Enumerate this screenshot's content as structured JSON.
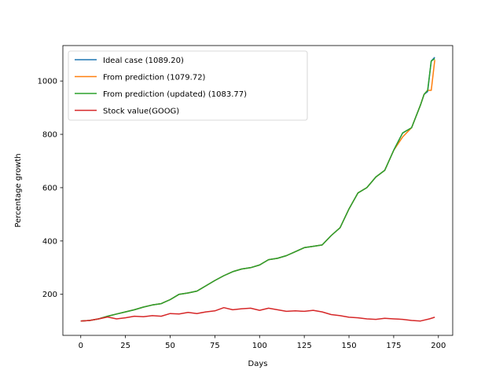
{
  "chart_data": {
    "type": "line",
    "xlabel": "Days",
    "ylabel": "Percentage growth",
    "xlim": [
      -10,
      208
    ],
    "ylim": [
      46,
      1133
    ],
    "xticks": [
      "0",
      "25",
      "50",
      "75",
      "100",
      "125",
      "150",
      "175",
      "200"
    ],
    "yticks": [
      "200",
      "400",
      "600",
      "800",
      "1000"
    ],
    "xtick_values": [
      0,
      25,
      50,
      75,
      100,
      125,
      150,
      175,
      200
    ],
    "ytick_values": [
      200,
      400,
      600,
      800,
      1000
    ],
    "grid": false,
    "legend_position": "top-left",
    "series": [
      {
        "name": "Ideal case (1089.20)",
        "color": "#1f77b4",
        "x": [
          0,
          5,
          10,
          15,
          20,
          25,
          30,
          35,
          40,
          45,
          50,
          55,
          60,
          65,
          70,
          75,
          80,
          85,
          90,
          95,
          100,
          105,
          110,
          115,
          120,
          125,
          130,
          135,
          140,
          145,
          150,
          155,
          160,
          165,
          170,
          175,
          180,
          185,
          190,
          192,
          194,
          196,
          198
        ],
        "y": [
          100,
          102,
          108,
          118,
          126,
          134,
          142,
          152,
          160,
          165,
          180,
          200,
          205,
          212,
          232,
          252,
          270,
          285,
          295,
          300,
          310,
          330,
          335,
          345,
          360,
          375,
          380,
          385,
          420,
          450,
          520,
          580,
          600,
          640,
          665,
          740,
          805,
          825,
          910,
          950,
          960,
          1075,
          1089
        ]
      },
      {
        "name": "From prediction (1079.72)",
        "color": "#ff7f0e",
        "x": [
          0,
          5,
          10,
          15,
          20,
          25,
          30,
          35,
          40,
          45,
          50,
          55,
          60,
          65,
          70,
          75,
          80,
          85,
          90,
          95,
          100,
          105,
          110,
          115,
          120,
          125,
          130,
          135,
          140,
          145,
          150,
          155,
          160,
          165,
          170,
          175,
          180,
          185,
          190,
          192,
          194,
          196,
          198
        ],
        "y": [
          100,
          102,
          108,
          118,
          126,
          134,
          142,
          152,
          160,
          165,
          180,
          200,
          205,
          212,
          232,
          252,
          270,
          285,
          295,
          300,
          310,
          330,
          335,
          345,
          360,
          375,
          380,
          385,
          420,
          450,
          520,
          580,
          600,
          640,
          665,
          740,
          790,
          825,
          910,
          950,
          965,
          965,
          1079
        ]
      },
      {
        "name": "From prediction (updated) (1083.77)",
        "color": "#2ca02c",
        "x": [
          0,
          5,
          10,
          15,
          20,
          25,
          30,
          35,
          40,
          45,
          50,
          55,
          60,
          65,
          70,
          75,
          80,
          85,
          90,
          95,
          100,
          105,
          110,
          115,
          120,
          125,
          130,
          135,
          140,
          145,
          150,
          155,
          160,
          165,
          170,
          175,
          180,
          185,
          190,
          192,
          194,
          196,
          198
        ],
        "y": [
          100,
          102,
          108,
          118,
          126,
          134,
          142,
          152,
          160,
          165,
          180,
          200,
          205,
          212,
          232,
          252,
          270,
          285,
          295,
          300,
          310,
          330,
          335,
          345,
          360,
          375,
          380,
          385,
          420,
          450,
          520,
          580,
          600,
          640,
          665,
          740,
          805,
          825,
          910,
          950,
          965,
          1075,
          1084
        ]
      },
      {
        "name": "Stock value(GOOG)",
        "color": "#d62728",
        "x": [
          0,
          5,
          10,
          15,
          20,
          25,
          30,
          35,
          40,
          45,
          50,
          55,
          60,
          65,
          70,
          75,
          80,
          85,
          90,
          95,
          100,
          105,
          110,
          115,
          120,
          125,
          130,
          135,
          140,
          145,
          150,
          155,
          160,
          165,
          170,
          175,
          180,
          185,
          190,
          195,
          198
        ],
        "y": [
          100,
          102,
          108,
          115,
          108,
          112,
          118,
          116,
          120,
          118,
          128,
          126,
          132,
          128,
          134,
          138,
          150,
          142,
          146,
          148,
          140,
          148,
          142,
          136,
          138,
          136,
          140,
          134,
          124,
          120,
          114,
          112,
          108,
          106,
          110,
          108,
          106,
          102,
          100,
          108,
          114
        ]
      }
    ]
  }
}
